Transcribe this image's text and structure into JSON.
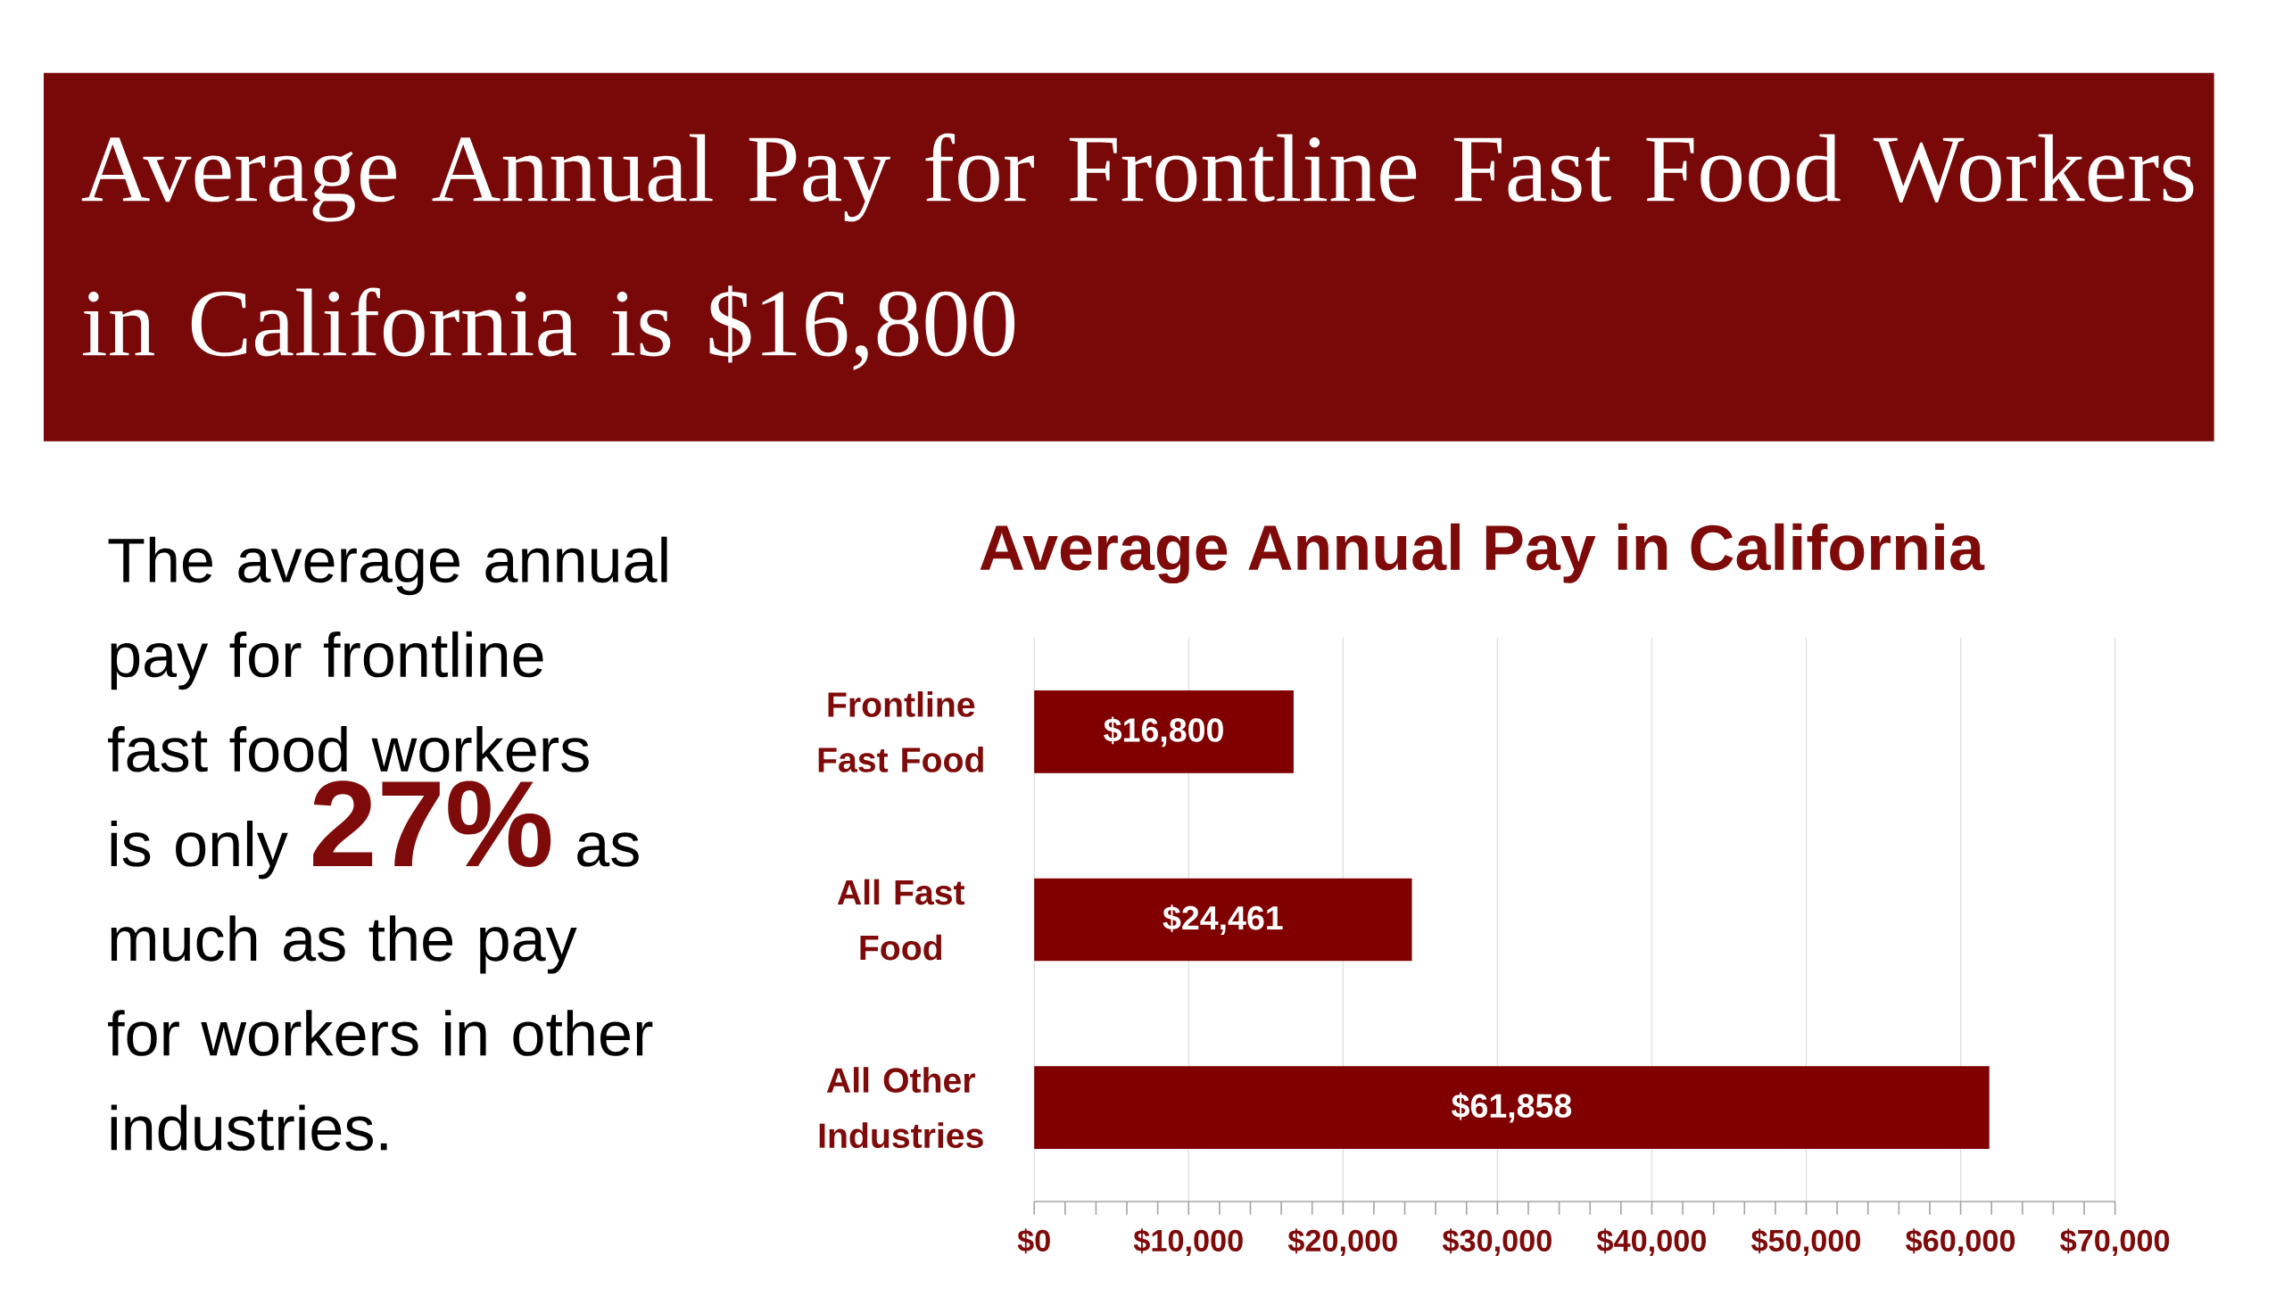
{
  "chart_data": {
    "type": "bar",
    "orientation": "horizontal",
    "title": "Average Annual Pay for Frontline Fast Food Workers in California is $16,800",
    "subtitle": "Average Annual Pay in California",
    "annotations": [
      "The average annual pay for frontline fast food workers is only",
      "27%",
      "as much as the pay for workers in other industries."
    ],
    "categories": [
      "Frontline Fast Food",
      "All Fast Food",
      "All Other Industries"
    ],
    "values": [
      16800,
      24461,
      61858
    ],
    "value_labels": [
      "$16,800",
      "$24,461",
      "$61,858"
    ],
    "color": "#800000",
    "xlim": [
      0,
      70000
    ],
    "xticks": [
      {
        "value": 0,
        "label": "$0"
      },
      {
        "value": 10000,
        "label": "$10,000"
      },
      {
        "value": 20000,
        "label": "$20,000"
      },
      {
        "value": 30000,
        "label": "$30,000"
      },
      {
        "value": 40000,
        "label": "$40,000"
      },
      {
        "value": 50000,
        "label": "$50,000"
      },
      {
        "value": 60000,
        "label": "$60,000"
      },
      {
        "value": 70000,
        "label": "$70,000"
      }
    ],
    "grid": "x"
  }
}
